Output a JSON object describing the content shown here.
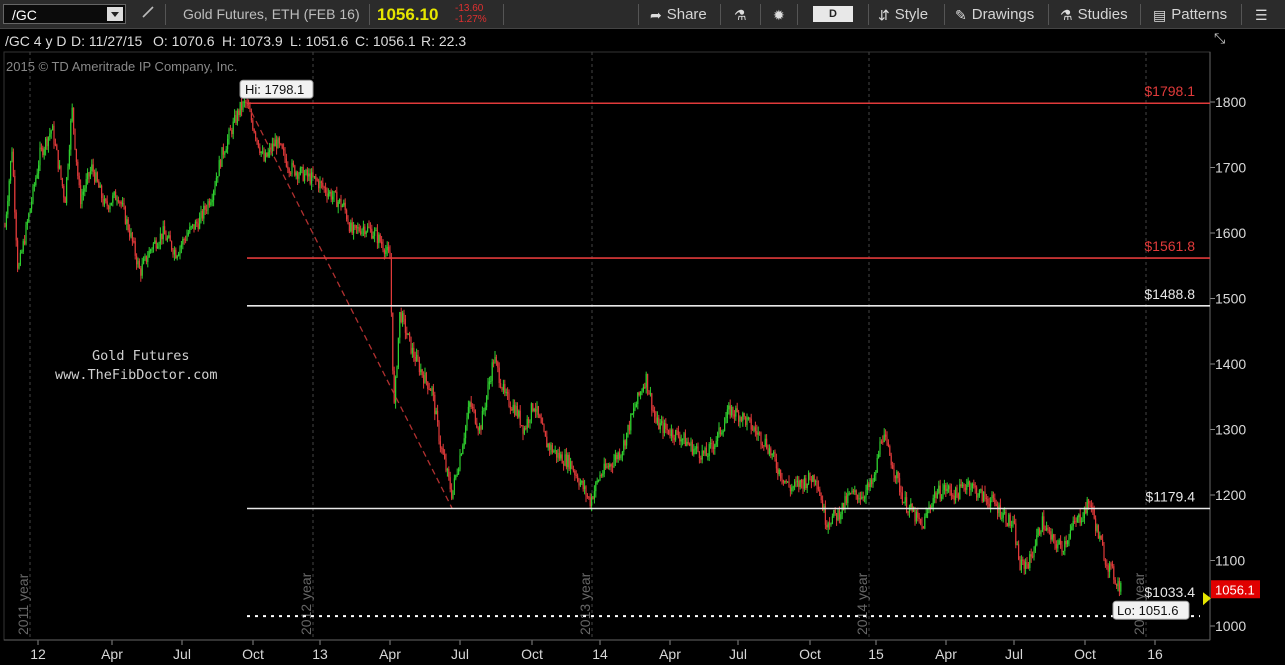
{
  "toolbar": {
    "symbol": "/GC",
    "description": "Gold Futures, ETH (FEB 16)",
    "last_price": "1056.10",
    "change": "-13.60",
    "change_pct": "-1.27%",
    "share_label": "Share",
    "period": "D",
    "style_label": "Style",
    "drawings_label": "Drawings",
    "studies_label": "Studies",
    "patterns_label": "Patterns"
  },
  "info": {
    "symbol_range": "/GC 4 y D",
    "date": "D: 11/27/15",
    "open": "O: 1070.6",
    "high": "H: 1073.9",
    "low": "L: 1051.6",
    "close": "C: 1056.1",
    "range": "R: 22.3"
  },
  "copyright": "2015 © TD Ameritrade IP Company, Inc.",
  "watermark": {
    "line1": "Gold Futures",
    "line2": "www.TheFibDoctor.com"
  },
  "colors": {
    "up": "#2fd02f",
    "down": "#e03a3a",
    "fib_red": "#e03a3a",
    "fib_white": "#e8e8e8",
    "price_tag": "#e00000",
    "last_marker": "#e6e600"
  },
  "chart_data": {
    "type": "candlestick",
    "title": "",
    "ylim": [
      950,
      1880
    ],
    "y_ticks": [
      1000,
      1100,
      1200,
      1300,
      1400,
      1500,
      1600,
      1700,
      1800
    ],
    "x_ticks": [
      "12",
      "Apr",
      "Jul",
      "Oct",
      "13",
      "Apr",
      "Jul",
      "Oct",
      "14",
      "Apr",
      "Jul",
      "Oct",
      "15",
      "Apr",
      "Jul",
      "Oct",
      "16"
    ],
    "year_markers": [
      "2011 year",
      "2012 year",
      "2013 year",
      "2014 year",
      "2015 year"
    ],
    "price_path": [
      [
        0,
        1690
      ],
      [
        5,
        1610
      ],
      [
        12,
        1730
      ],
      [
        18,
        1540
      ],
      [
        28,
        1620
      ],
      [
        40,
        1720
      ],
      [
        52,
        1760
      ],
      [
        65,
        1650
      ],
      [
        72,
        1790
      ],
      [
        80,
        1650
      ],
      [
        92,
        1700
      ],
      [
        105,
        1640
      ],
      [
        118,
        1660
      ],
      [
        130,
        1600
      ],
      [
        140,
        1540
      ],
      [
        152,
        1580
      ],
      [
        163,
        1600
      ],
      [
        176,
        1570
      ],
      [
        188,
        1600
      ],
      [
        200,
        1620
      ],
      [
        212,
        1660
      ],
      [
        222,
        1720
      ],
      [
        232,
        1760
      ],
      [
        240,
        1790
      ],
      [
        246,
        1798
      ],
      [
        252,
        1770
      ],
      [
        264,
        1710
      ],
      [
        276,
        1740
      ],
      [
        290,
        1700
      ],
      [
        302,
        1690
      ],
      [
        316,
        1680
      ],
      [
        330,
        1660
      ],
      [
        344,
        1640
      ],
      [
        352,
        1600
      ],
      [
        364,
        1610
      ],
      [
        374,
        1600
      ],
      [
        384,
        1580
      ],
      [
        390,
        1560
      ],
      [
        394,
        1330
      ],
      [
        400,
        1480
      ],
      [
        412,
        1420
      ],
      [
        424,
        1380
      ],
      [
        432,
        1360
      ],
      [
        440,
        1280
      ],
      [
        452,
        1200
      ],
      [
        460,
        1260
      ],
      [
        470,
        1340
      ],
      [
        480,
        1300
      ],
      [
        494,
        1410
      ],
      [
        505,
        1350
      ],
      [
        516,
        1330
      ],
      [
        524,
        1300
      ],
      [
        534,
        1340
      ],
      [
        546,
        1280
      ],
      [
        558,
        1260
      ],
      [
        570,
        1250
      ],
      [
        580,
        1220
      ],
      [
        590,
        1190
      ],
      [
        600,
        1230
      ],
      [
        612,
        1250
      ],
      [
        622,
        1270
      ],
      [
        634,
        1330
      ],
      [
        646,
        1380
      ],
      [
        656,
        1310
      ],
      [
        666,
        1300
      ],
      [
        680,
        1290
      ],
      [
        694,
        1270
      ],
      [
        706,
        1260
      ],
      [
        718,
        1290
      ],
      [
        730,
        1330
      ],
      [
        742,
        1320
      ],
      [
        754,
        1300
      ],
      [
        766,
        1280
      ],
      [
        778,
        1240
      ],
      [
        790,
        1210
      ],
      [
        804,
        1220
      ],
      [
        816,
        1230
      ],
      [
        826,
        1160
      ],
      [
        838,
        1170
      ],
      [
        850,
        1200
      ],
      [
        862,
        1200
      ],
      [
        874,
        1220
      ],
      [
        882,
        1295
      ],
      [
        892,
        1250
      ],
      [
        904,
        1190
      ],
      [
        914,
        1170
      ],
      [
        922,
        1150
      ],
      [
        934,
        1200
      ],
      [
        946,
        1210
      ],
      [
        956,
        1200
      ],
      [
        968,
        1220
      ],
      [
        980,
        1200
      ],
      [
        992,
        1190
      ],
      [
        1004,
        1170
      ],
      [
        1014,
        1150
      ],
      [
        1020,
        1090
      ],
      [
        1030,
        1100
      ],
      [
        1042,
        1160
      ],
      [
        1052,
        1130
      ],
      [
        1062,
        1120
      ],
      [
        1072,
        1150
      ],
      [
        1082,
        1170
      ],
      [
        1090,
        1190
      ],
      [
        1098,
        1140
      ],
      [
        1106,
        1100
      ],
      [
        1116,
        1070
      ],
      [
        1122,
        1056
      ]
    ],
    "fib_levels": [
      {
        "label": "$1798.1",
        "value": 1798.1,
        "color": "red"
      },
      {
        "label": "$1561.8",
        "value": 1561.8,
        "color": "red"
      },
      {
        "label": "$1488.8",
        "value": 1488.8,
        "color": "white"
      },
      {
        "label": "$1179.4",
        "value": 1179.4,
        "color": "white"
      },
      {
        "label": "$1033.4",
        "value": 1033.4,
        "color": "white-dotted"
      }
    ],
    "high_label": "Hi: 1798.1",
    "low_label": "Lo: 1051.6",
    "last_price_tag": "1056.1",
    "last_price": 1056.1,
    "low_value": 1051.6,
    "high_value": 1798.1
  }
}
